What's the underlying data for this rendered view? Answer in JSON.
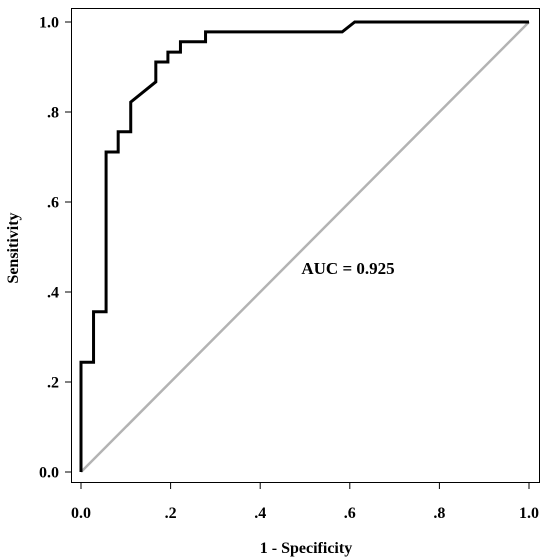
{
  "chart_data": {
    "type": "line",
    "title": "",
    "xlabel": "1 - Specificity",
    "ylabel": "Sensitivity",
    "xlim": [
      0,
      1
    ],
    "ylim": [
      0,
      1
    ],
    "xticks": [
      0,
      0.2,
      0.4,
      0.6,
      0.8,
      1.0
    ],
    "xtick_labels": [
      "0.0",
      ".2",
      ".4",
      ".6",
      ".8",
      "1.0"
    ],
    "yticks": [
      0,
      0.2,
      0.4,
      0.6,
      0.8,
      1.0
    ],
    "ytick_labels": [
      "0.0",
      ".2",
      ".4",
      ".6",
      ".8",
      "1.0"
    ],
    "grid": false,
    "legend": "none",
    "annotation": "AUC = 0.925",
    "series": [
      {
        "color": "#000000",
        "step": true,
        "x": [
          0,
          0,
          0.028,
          0.028,
          0.056,
          0.056,
          0.083,
          0.083,
          0.111,
          0.111,
          0.167,
          0.167,
          0.194,
          0.194,
          0.222,
          0.222,
          0.278,
          0.278,
          0.583,
          0.611,
          1.0
        ],
        "y": [
          0,
          0.244,
          0.244,
          0.356,
          0.356,
          0.711,
          0.711,
          0.756,
          0.756,
          0.822,
          0.867,
          0.911,
          0.911,
          0.933,
          0.933,
          0.956,
          0.956,
          0.978,
          0.978,
          1.0,
          1.0
        ]
      },
      {
        "color": "#b3b3b3",
        "x": [
          0,
          1
        ],
        "y": [
          0,
          1
        ]
      }
    ]
  }
}
